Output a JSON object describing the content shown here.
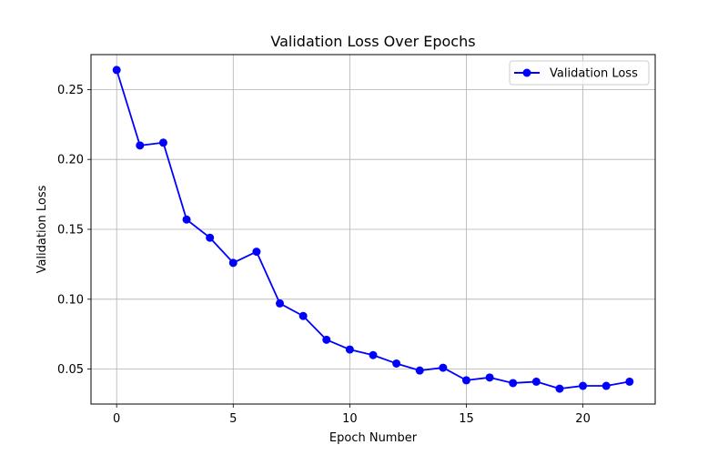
{
  "colors": {
    "series": "#0000ff",
    "grid": "#b0b0b0",
    "axis": "#000000",
    "background": "#ffffff"
  },
  "chart_data": {
    "type": "line",
    "title": "Validation Loss Over Epochs",
    "xlabel": "Epoch Number",
    "ylabel": "Validation Loss",
    "xlim": [
      -1.1,
      23.1
    ],
    "ylim": [
      0.025,
      0.275
    ],
    "xticks": [
      0,
      5,
      10,
      15,
      20
    ],
    "xtick_labels": [
      "0",
      "5",
      "10",
      "15",
      "20"
    ],
    "yticks": [
      0.05,
      0.1,
      0.15,
      0.2,
      0.25
    ],
    "ytick_labels": [
      "0.05",
      "0.10",
      "0.15",
      "0.20",
      "0.25"
    ],
    "grid": true,
    "legend_position": "top-right",
    "marker": "circle",
    "series": [
      {
        "name": "Validation Loss",
        "color": "#0000ff",
        "x": [
          0,
          1,
          2,
          3,
          4,
          5,
          6,
          7,
          8,
          9,
          10,
          11,
          12,
          13,
          14,
          15,
          16,
          17,
          18,
          19,
          20,
          21,
          22
        ],
        "y": [
          0.264,
          0.21,
          0.212,
          0.157,
          0.144,
          0.126,
          0.134,
          0.097,
          0.088,
          0.071,
          0.064,
          0.06,
          0.054,
          0.049,
          0.051,
          0.042,
          0.044,
          0.04,
          0.041,
          0.036,
          0.038,
          0.038,
          0.041
        ]
      }
    ]
  }
}
